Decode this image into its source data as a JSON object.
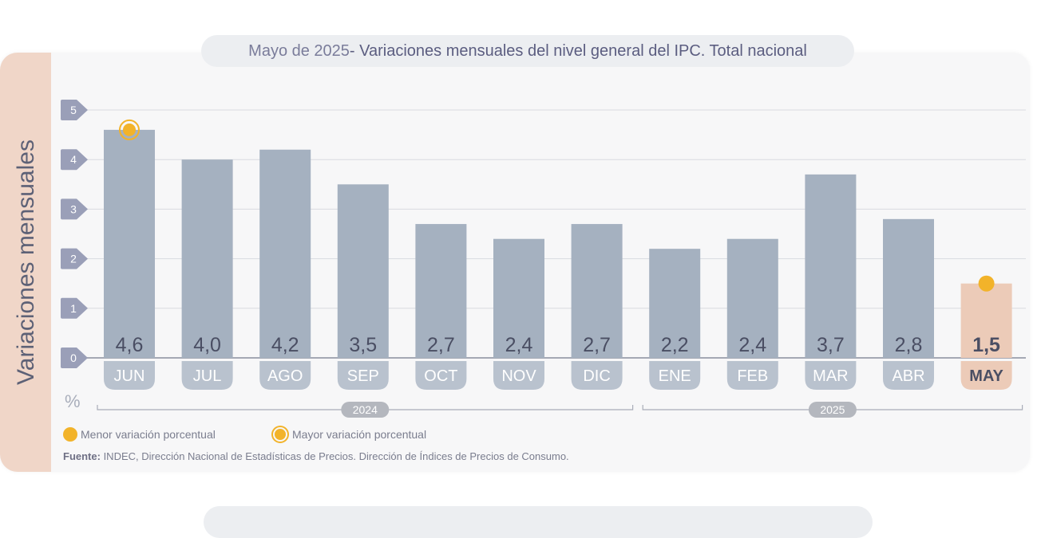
{
  "side_label": "Variaciones mensuales",
  "title": {
    "prefix": "Mayo de 2025",
    "main": " - Variaciones mensuales del nivel general del IPC. Total nacional"
  },
  "unit": "%",
  "legend": {
    "min_label": "Menor variación porcentual",
    "max_label": "Mayor variación porcentual"
  },
  "source": {
    "label": "Fuente:",
    "text": " INDEC, Dirección Nacional de Estadísticas de Precios. Dirección de Índices de Precios de Consumo."
  },
  "colors": {
    "bar": "#a5b1c0",
    "bar_current": "#eccbb8",
    "marker": "#f2b32a",
    "label_text": "#4a4e63",
    "tick_pill": "#9a9fb8",
    "year_pill": "#b4b7be"
  },
  "chart_data": {
    "type": "bar",
    "categories": [
      "JUN",
      "JUL",
      "AGO",
      "SEP",
      "OCT",
      "NOV",
      "DIC",
      "ENE",
      "FEB",
      "MAR",
      "ABR",
      "MAY"
    ],
    "values": [
      4.6,
      4.0,
      4.2,
      3.5,
      2.7,
      2.4,
      2.7,
      2.2,
      2.4,
      3.7,
      2.8,
      1.5
    ],
    "value_labels": [
      "4,6",
      "4,0",
      "4,2",
      "3,5",
      "2,7",
      "2,4",
      "2,7",
      "2,2",
      "2,4",
      "3,7",
      "2,8",
      "1,5"
    ],
    "highlight_category": "MAY",
    "max_category": "JUN",
    "min_category": "MAY",
    "ylim": [
      0,
      5
    ],
    "yticks": [
      0,
      1,
      2,
      3,
      4,
      5
    ],
    "grid": true,
    "year_groups": [
      {
        "label": "2024",
        "from": "JUN",
        "to": "DIC"
      },
      {
        "label": "2025",
        "from": "ENE",
        "to": "MAY"
      }
    ]
  }
}
